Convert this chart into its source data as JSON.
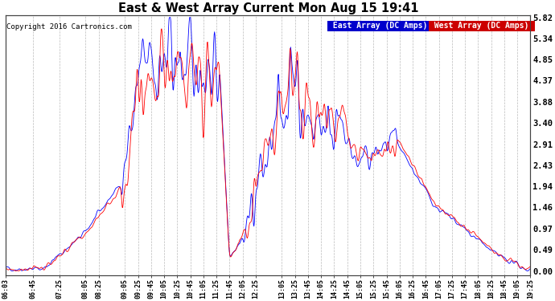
{
  "title": "East & West Array Current Mon Aug 15 19:41",
  "copyright": "Copyright 2016 Cartronics.com",
  "ylabel_right": [
    "5.82",
    "5.34",
    "4.85",
    "4.37",
    "3.88",
    "3.40",
    "2.91",
    "2.43",
    "1.94",
    "1.46",
    "0.97",
    "0.49",
    "0.00"
  ],
  "yvalues": [
    5.82,
    5.34,
    4.85,
    4.37,
    3.88,
    3.4,
    2.91,
    2.43,
    1.94,
    1.46,
    0.97,
    0.49,
    0.0
  ],
  "ymax": 5.82,
  "ymin": 0.0,
  "east_color": "#0000ff",
  "west_color": "#ff0000",
  "background_color": "#ffffff",
  "grid_color": "#bbbbbb",
  "legend_east_bg": "#0000cc",
  "legend_west_bg": "#cc0000",
  "legend_east_label": "East Array (DC Amps)",
  "legend_west_label": "West Array (DC Amps)",
  "figwidth": 6.9,
  "figheight": 3.75,
  "dpi": 100
}
